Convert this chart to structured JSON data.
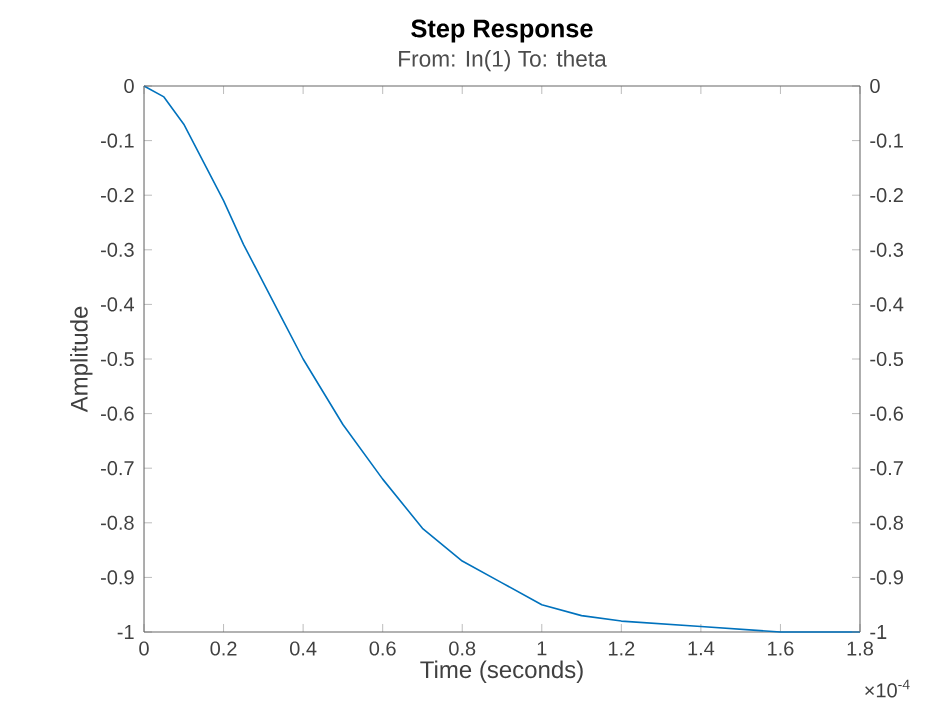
{
  "chart_data": {
    "type": "line",
    "title": "Step Response",
    "subtitle": "From: In(1)  To: theta",
    "xlabel": "Time (seconds)",
    "ylabel": "Amplitude",
    "x": [
      0,
      0.05,
      0.1,
      0.15,
      0.2,
      0.25,
      0.3,
      0.35,
      0.4,
      0.45,
      0.5,
      0.6,
      0.7,
      0.8,
      0.9,
      1.0,
      1.1,
      1.2,
      1.4,
      1.6,
      1.8
    ],
    "series": [
      {
        "color": "#0072bd",
        "values": [
          0,
          -0.02,
          -0.07,
          -0.14,
          -0.21,
          -0.29,
          -0.36,
          -0.43,
          -0.5,
          -0.56,
          -0.62,
          -0.72,
          -0.81,
          -0.87,
          -0.91,
          -0.95,
          -0.97,
          -0.98,
          -0.99,
          -1.0,
          -1.0
        ]
      }
    ],
    "xlim": [
      0,
      1.8
    ],
    "xticks": [
      0,
      0.2,
      0.4,
      0.6,
      0.8,
      1,
      1.2,
      1.4,
      1.6,
      1.8
    ],
    "ylim": [
      -1,
      0
    ],
    "yticks": [
      -1,
      -0.9,
      -0.8,
      -0.7,
      -0.6,
      -0.5,
      -0.4,
      -0.3,
      -0.2,
      -0.1,
      0
    ],
    "y2lim": [
      -1,
      0
    ],
    "y2ticks": [
      -1,
      -0.9,
      -0.8,
      -0.7,
      -0.6,
      -0.5,
      -0.4,
      -0.3,
      -0.2,
      -0.1,
      0
    ],
    "marker": "none",
    "line_style": "solid",
    "annotations": [
      "×10$^{-4}$"
    ]
  }
}
